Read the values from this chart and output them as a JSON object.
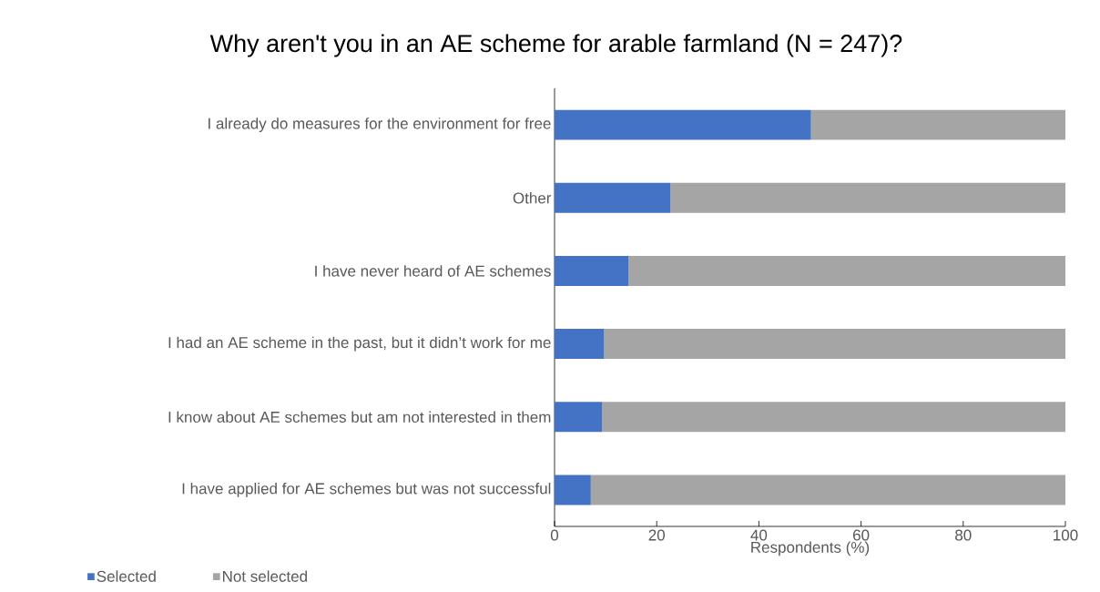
{
  "chart_data": {
    "type": "bar",
    "orientation": "horizontal",
    "stacked": true,
    "title": "Why aren't you in an AE scheme for arable farmland (N = 247)?",
    "xlabel": "Respondents (%)",
    "categories": [
      "I already do measures for the environment for free",
      "Other",
      "I have never heard of AE schemes",
      "I had an AE scheme in the past, but it didn’t work for me",
      "I know about AE schemes but am not interested in them",
      "I have applied for AE schemes but was not successful"
    ],
    "series": [
      {
        "name": "Selected",
        "color": "#4472c4",
        "values": [
          50.2,
          22.7,
          14.5,
          9.7,
          9.3,
          7.1
        ]
      },
      {
        "name": "Not selected",
        "color": "#a5a5a5",
        "values": [
          49.8,
          77.3,
          85.5,
          90.3,
          90.7,
          92.9
        ]
      }
    ],
    "xlim": [
      0,
      100
    ],
    "xticks": [
      0,
      20,
      40,
      60,
      80,
      100
    ],
    "grid": false,
    "legend": "bottom left"
  }
}
